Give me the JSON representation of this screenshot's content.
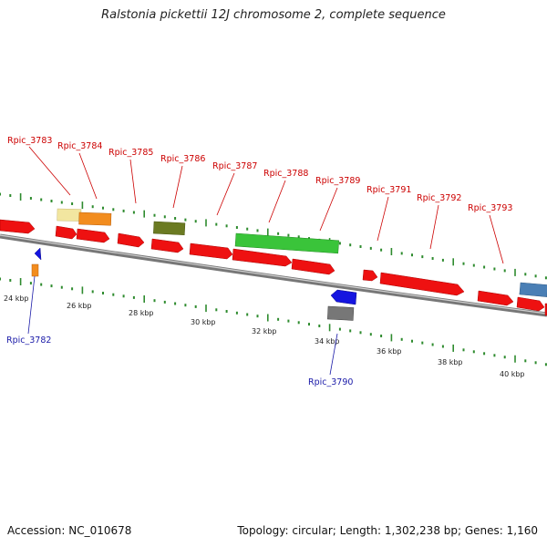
{
  "title": "Ralstonia pickettii 12J chromosome 2, complete sequence",
  "footer": {
    "accession": "Accession: NC_010678",
    "summary": "Topology: circular; Length: 1,302,238 bp; Genes: 1,160"
  },
  "scale_labels": [
    "24 kbp",
    "26 kbp",
    "28 kbp",
    "30 kbp",
    "32 kbp",
    "34 kbp",
    "36 kbp",
    "38 kbp",
    "40 kbp"
  ],
  "gene_labels_top": [
    "Rpic_3783",
    "Rpic_3784",
    "Rpic_3785",
    "Rpic_3786",
    "Rpic_3787",
    "Rpic_3788",
    "Rpic_3789",
    "Rpic_3791",
    "Rpic_3792",
    "Rpic_3793"
  ],
  "gene_labels_bottom": [
    "Rpic_3782",
    "Rpic_3790"
  ],
  "colors": {
    "gene_red": "#ee1111",
    "orange": "#f28c1e",
    "pale_yellow": "#f2e6a0",
    "olive": "#6b7a22",
    "green": "#3ac43a",
    "blue": "#1515e0",
    "gray": "#777777",
    "steel_blue": "#4a7fb5",
    "tick_green": "#2e8b2e",
    "label_red": "#cc0000",
    "label_blue": "#1a1aa8"
  }
}
